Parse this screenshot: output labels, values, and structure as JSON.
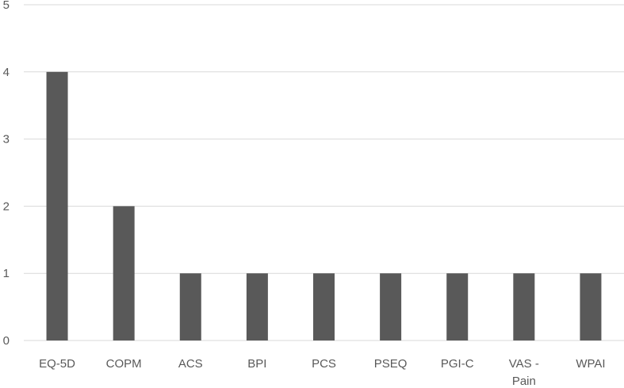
{
  "chart_data": {
    "type": "bar",
    "title": "",
    "xlabel": "",
    "ylabel": "",
    "ylim": [
      0,
      5
    ],
    "yticks": [
      0,
      1,
      2,
      3,
      4,
      5
    ],
    "grid": true,
    "categories": [
      [
        "EQ-5D"
      ],
      [
        "COPM"
      ],
      [
        "ACS"
      ],
      [
        "BPI"
      ],
      [
        "PCS"
      ],
      [
        "PSEQ"
      ],
      [
        "PGI-C"
      ],
      [
        "VAS -",
        "Pain"
      ],
      [
        "WPAI"
      ]
    ],
    "values": [
      4,
      2,
      1,
      1,
      1,
      1,
      1,
      1,
      1
    ],
    "colors": {
      "bar": "#595959",
      "grid": "#d9d9d9",
      "text": "#595959"
    }
  }
}
